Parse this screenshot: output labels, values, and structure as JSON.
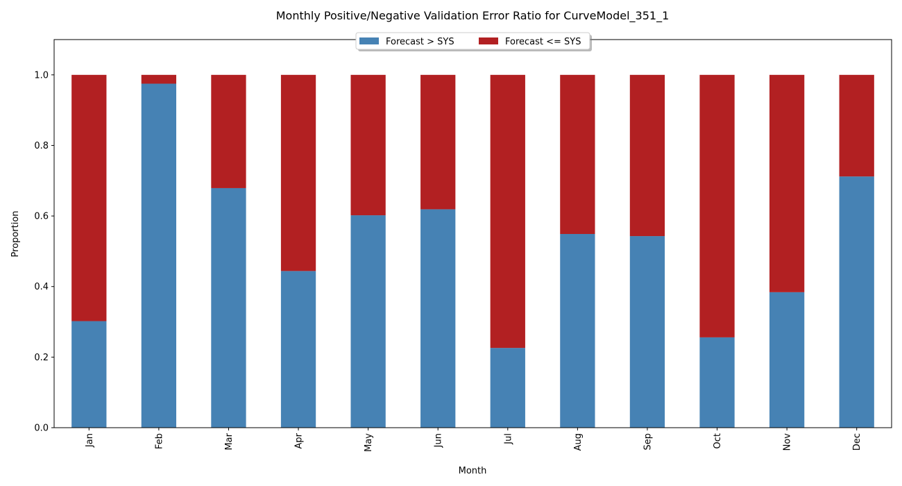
{
  "chart_data": {
    "type": "bar",
    "stacked": true,
    "title": "Monthly Positive/Negative Validation Error Ratio for CurveModel_351_1",
    "xlabel": "Month",
    "ylabel": "Proportion",
    "categories": [
      "Jan",
      "Feb",
      "Mar",
      "Apr",
      "May",
      "Jun",
      "Jul",
      "Aug",
      "Sep",
      "Oct",
      "Nov",
      "Dec"
    ],
    "series": [
      {
        "name": "Forecast > SYS",
        "color": "#4682b4",
        "values": [
          0.302,
          0.975,
          0.679,
          0.444,
          0.602,
          0.619,
          0.226,
          0.549,
          0.543,
          0.256,
          0.384,
          0.712
        ]
      },
      {
        "name": "Forecast <= SYS",
        "color": "#b22022",
        "values": [
          0.698,
          0.025,
          0.321,
          0.556,
          0.398,
          0.381,
          0.774,
          0.451,
          0.457,
          0.744,
          0.616,
          0.288
        ]
      }
    ],
    "ylim": [
      0,
      1.1
    ],
    "yticks": [
      "0.0",
      "0.2",
      "0.4",
      "0.6",
      "0.8",
      "1.0"
    ],
    "legend_position": "top-center",
    "grid": false
  }
}
